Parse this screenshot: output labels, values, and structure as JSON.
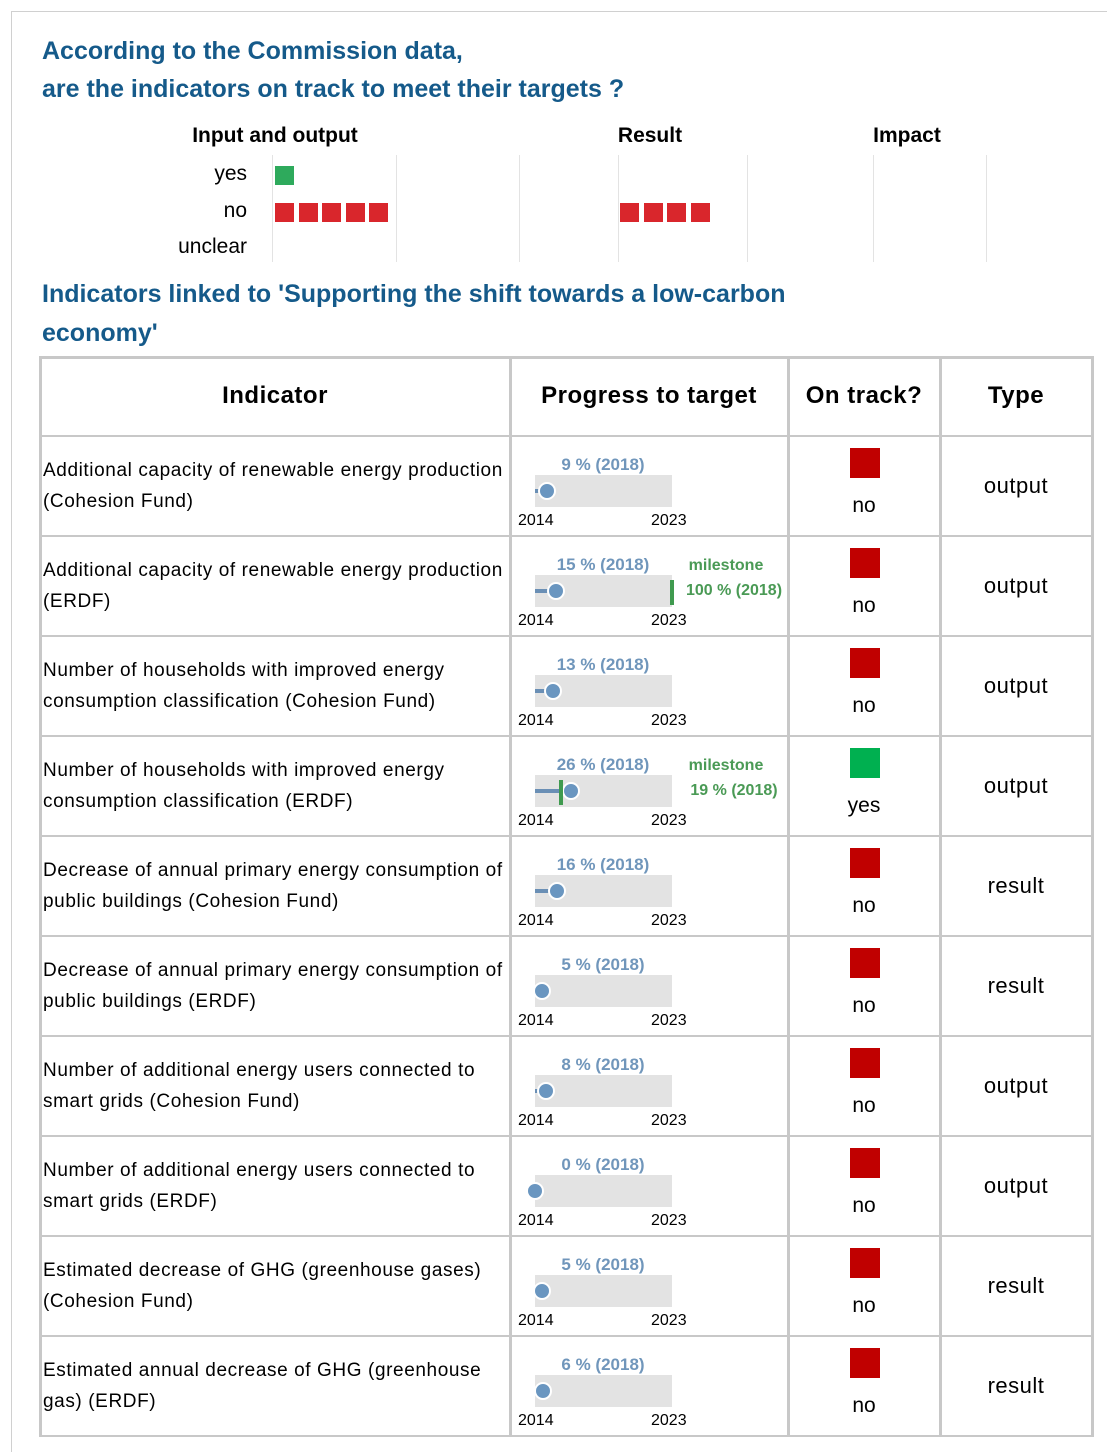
{
  "header": {
    "title_lines": [
      "According to the Commission data,",
      "are the indicators on track to meet their targets ?"
    ]
  },
  "summary": {
    "columns": [
      "Input and output",
      "Result",
      "Impact"
    ],
    "rows": [
      {
        "label": "yes",
        "color": "#2eaa5c",
        "counts": [
          1,
          0,
          0
        ]
      },
      {
        "label": "no",
        "color": "#d9262c",
        "counts": [
          5,
          4,
          0
        ]
      },
      {
        "label": "unclear",
        "color": "#999999",
        "counts": [
          0,
          0,
          0
        ]
      }
    ]
  },
  "section_title": "Indicators linked to 'Supporting the shift towards a low-carbon economy'",
  "table": {
    "headers": [
      "Indicator",
      "Progress to target",
      "On track?",
      "Type"
    ],
    "timeline": [
      "2014",
      "2023"
    ],
    "progress_scale": [
      0,
      100
    ],
    "track_colors": {
      "yes": "#00b050",
      "no": "#c00000"
    },
    "rows": [
      {
        "indicator": "Additional capacity of renewable energy production (Cohesion Fund)",
        "progress": {
          "value": 9,
          "label": "9 % (2018)"
        },
        "on_track": "no",
        "type": "output"
      },
      {
        "indicator": "Additional capacity of renewable energy production (ERDF)",
        "progress": {
          "value": 15,
          "label": "15 % (2018)"
        },
        "milestone": {
          "label": "milestone",
          "value": 100,
          "value_label": "100 % (2018)"
        },
        "on_track": "no",
        "type": "output"
      },
      {
        "indicator": "Number of households with improved energy consumption classification (Cohesion Fund)",
        "progress": {
          "value": 13,
          "label": "13 % (2018)"
        },
        "on_track": "no",
        "type": "output"
      },
      {
        "indicator": "Number of households with improved energy consumption classification (ERDF)",
        "progress": {
          "value": 26,
          "label": "26 % (2018)"
        },
        "milestone": {
          "label": "milestone",
          "value": 19,
          "value_label": "19 % (2018)"
        },
        "on_track": "yes",
        "type": "output"
      },
      {
        "indicator": "Decrease of annual primary energy consumption of public buildings (Cohesion Fund)",
        "progress": {
          "value": 16,
          "label": "16 % (2018)"
        },
        "on_track": "no",
        "type": "result"
      },
      {
        "indicator": "Decrease of annual primary energy consumption of public buildings (ERDF)",
        "progress": {
          "value": 5,
          "label": "5 % (2018)"
        },
        "on_track": "no",
        "type": "result"
      },
      {
        "indicator": "Number of additional energy users connected to smart grids (Cohesion Fund)",
        "progress": {
          "value": 8,
          "label": "8 % (2018)"
        },
        "on_track": "no",
        "type": "output"
      },
      {
        "indicator": "Number of additional energy users connected to smart grids (ERDF)",
        "progress": {
          "value": 0,
          "label": "0 % (2018)"
        },
        "on_track": "no",
        "type": "output"
      },
      {
        "indicator": "Estimated decrease of GHG (greenhouse gases) (Cohesion Fund)",
        "progress": {
          "value": 5,
          "label": "5 % (2018)"
        },
        "on_track": "no",
        "type": "result"
      },
      {
        "indicator": "Estimated annual decrease of GHG (greenhouse gas) (ERDF)",
        "progress": {
          "value": 6,
          "label": "6 % (2018)"
        },
        "on_track": "no",
        "type": "result"
      }
    ]
  }
}
